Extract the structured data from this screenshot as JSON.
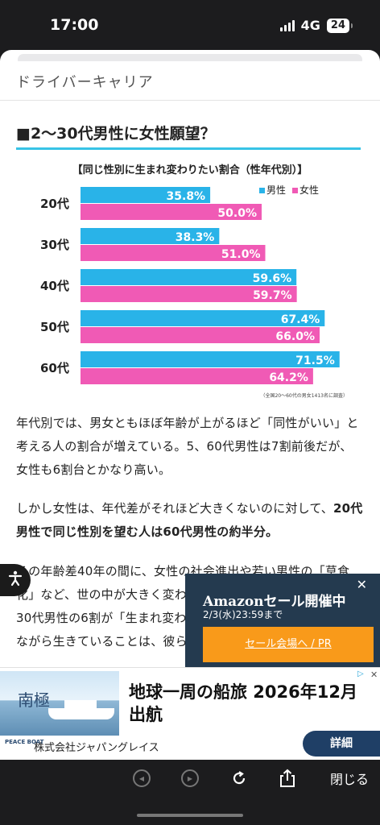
{
  "status": {
    "time": "17:00",
    "network": "4G",
    "battery": "24"
  },
  "site": {
    "title": "ドライバーキャリア"
  },
  "article": {
    "heading": "■2〜30代男性に女性願望？",
    "paragraphs": [
      {
        "text": "年代別では、男女ともほぼ年齢が上がるほど「同性がいい」と考える人の割合が増えている。5、60代男性は7割前後だが、女性も6割台とかなり高い。"
      },
      {
        "plain": "しかし女性は、年代差がそれほど大きくないのに対して、",
        "bold": "20代男性で同じ性別を望む人は60代男性の約半分。"
      },
      {
        "text": "その年齢差40年の間に、女性の社会進出や若い男性の「草食化」など、世の中が大きく変わった。"
      },
      {
        "text": "30代男性の6割が「生まれ変わ"
      },
      {
        "text": "ながら生きていることは、彼ら"
      }
    ]
  },
  "chart_data": {
    "type": "bar",
    "title": "【同じ性別に生まれ変わりたい割合（性年代別）】",
    "categories": [
      "20代",
      "30代",
      "40代",
      "50代",
      "60代"
    ],
    "series": [
      {
        "name": "男性",
        "values": [
          35.8,
          38.3,
          59.6,
          67.4,
          71.5
        ],
        "labels": [
          "35.8%",
          "38.3%",
          "59.6%",
          "67.4%",
          "71.5%"
        ],
        "color": "#29b3e8"
      },
      {
        "name": "女性",
        "values": [
          50.0,
          51.0,
          59.7,
          66.0,
          64.2
        ],
        "labels": [
          "50.0%",
          "51.0%",
          "59.7%",
          "66.0%",
          "64.2%"
        ],
        "color": "#f05ab5"
      }
    ],
    "legend": {
      "position": "top-right"
    },
    "note": "（全国20〜60代の男女1413名に調査）"
  },
  "a11y": {
    "icon": "accessibility-icon"
  },
  "promo": {
    "close": "✕",
    "title": "Amazonセール開催中",
    "subtitle": "2/3(水)23:59まで",
    "button": "セール会場へ / PR",
    "accent": "#f99a1a",
    "bg": "#243a4f"
  },
  "ad": {
    "image_text": "南極",
    "headline": "地球一周の船旅 2026年12月出航",
    "logo": "PEACE BOAT",
    "company": "株式会社ジャパングレイス",
    "button": "詳細"
  },
  "toolbar": {
    "close": "閉じる"
  }
}
